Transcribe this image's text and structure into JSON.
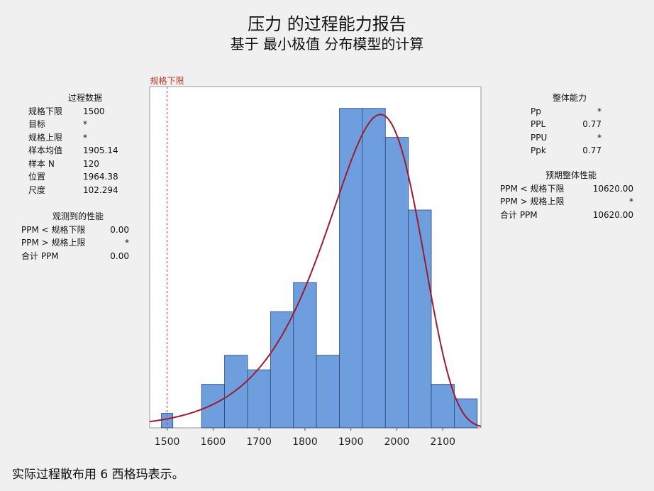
{
  "header": {
    "title": "压力 的过程能力报告",
    "subtitle": "基于 最小极值 分布模型的计算"
  },
  "process_data": {
    "heading": "过程数据",
    "rows": [
      {
        "label": "规格下限",
        "value": "1500"
      },
      {
        "label": "目标",
        "value": "*"
      },
      {
        "label": "规格上限",
        "value": "*"
      },
      {
        "label": "样本均值",
        "value": "1905.14"
      },
      {
        "label": "样本 N",
        "value": "120"
      },
      {
        "label": "位置",
        "value": "1964.38"
      },
      {
        "label": "尺度",
        "value": "102.294"
      }
    ]
  },
  "observed_performance": {
    "heading": "观测到的性能",
    "rows": [
      {
        "label": "PPM < 规格下限",
        "value": "0.00"
      },
      {
        "label": "PPM > 规格上限",
        "value": "*"
      },
      {
        "label": "合计 PPM",
        "value": "0.00"
      }
    ]
  },
  "overall_capability": {
    "heading": "整体能力",
    "rows": [
      {
        "label": "Pp",
        "value": "*"
      },
      {
        "label": "PPL",
        "value": "0.77"
      },
      {
        "label": "PPU",
        "value": "*"
      },
      {
        "label": "Ppk",
        "value": "0.77"
      }
    ]
  },
  "expected_overall_performance": {
    "heading": "预期整体性能",
    "rows": [
      {
        "label": "PPM < 规格下限",
        "value": "10620.00"
      },
      {
        "label": "PPM > 规格上限",
        "value": "*"
      },
      {
        "label": "合计 PPM",
        "value": "10620.00"
      }
    ]
  },
  "footer": {
    "note": "实际过程散布用 6 西格玛表示。"
  },
  "colors": {
    "bar_fill": "#6f9ede",
    "bar_stroke": "#2a4a78",
    "curve": "#9b1c2e",
    "spec_line": "#c0392b",
    "plot_bg": "#ffffff",
    "page_bg": "#f0f0f0"
  },
  "chart_data": {
    "type": "bar",
    "subtype": "histogram-with-fitted-curve",
    "bins": [
      {
        "start": 1487.5,
        "end": 1512.5,
        "count": 1
      },
      {
        "start": 1575,
        "end": 1625,
        "count": 3
      },
      {
        "start": 1625,
        "end": 1675,
        "count": 5
      },
      {
        "start": 1675,
        "end": 1725,
        "count": 4
      },
      {
        "start": 1725,
        "end": 1775,
        "count": 8
      },
      {
        "start": 1775,
        "end": 1825,
        "count": 10
      },
      {
        "start": 1825,
        "end": 1875,
        "count": 5
      },
      {
        "start": 1875,
        "end": 1925,
        "count": 22
      },
      {
        "start": 1925,
        "end": 1975,
        "count": 22
      },
      {
        "start": 1975,
        "end": 2025,
        "count": 20
      },
      {
        "start": 2025,
        "end": 2075,
        "count": 15
      },
      {
        "start": 2075,
        "end": 2125,
        "count": 3
      },
      {
        "start": 2125,
        "end": 2175,
        "count": 2
      }
    ],
    "x_ticks": [
      "1500",
      "1600",
      "1700",
      "1800",
      "1900",
      "2000",
      "2100"
    ],
    "xlim": [
      1462,
      2183
    ],
    "ylim": [
      0,
      23.5
    ],
    "fitted_curve": {
      "distribution": "smallest extreme value",
      "location": 1964.38,
      "scale": 102.294,
      "n": 120,
      "bin_width": 50
    },
    "spec_limits": [
      {
        "label": "规格下限",
        "value": 1500
      }
    ],
    "grid": false,
    "legend": "none"
  }
}
